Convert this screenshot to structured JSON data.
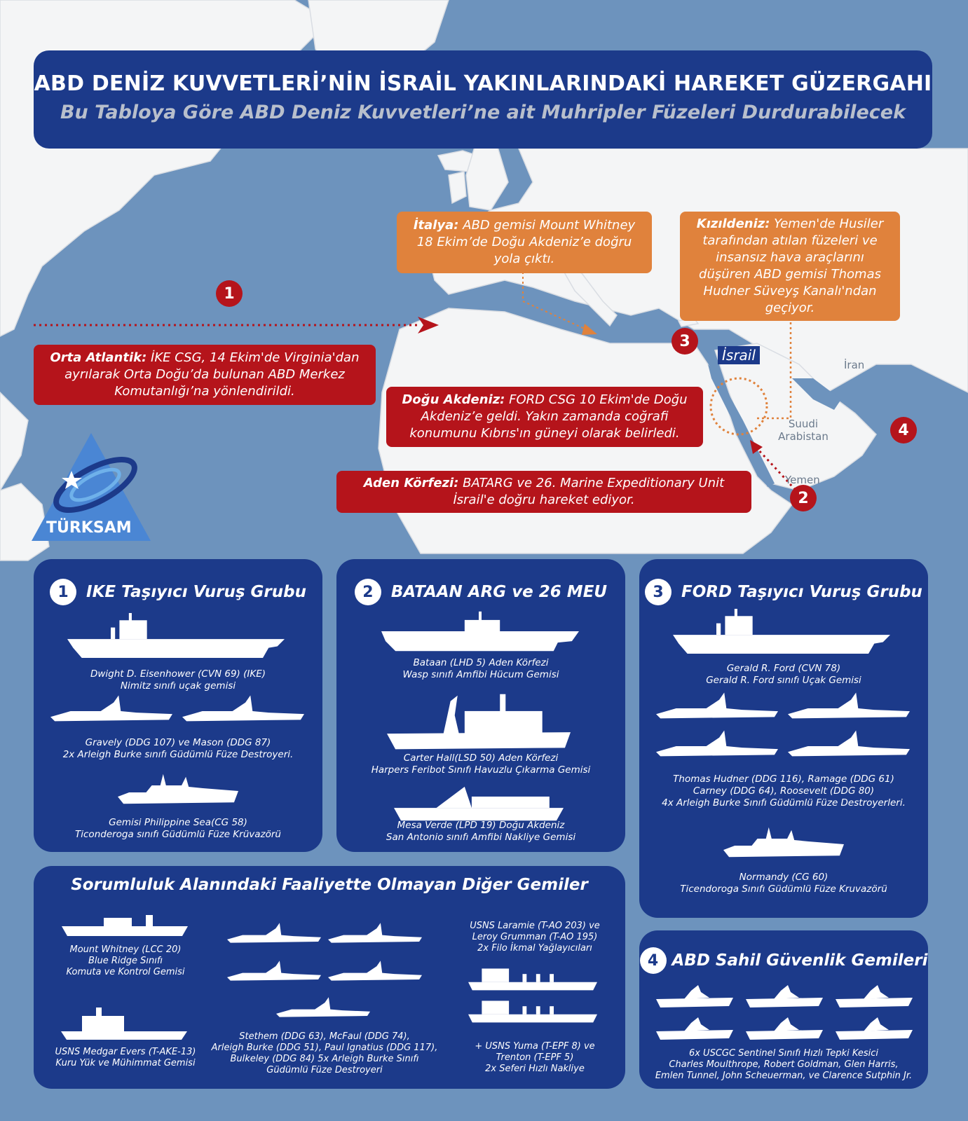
{
  "header": {
    "title": "ABD DENİZ KUVVETLERİ’NİN İSRAİL YAKINLARINDAKİ HAREKET GÜZERGAHI",
    "subtitle": "Bu Tabloya Göre ABD Deniz Kuvvetleri’ne ait Muhripler Füzeleri Durdurabilecek"
  },
  "colors": {
    "navy": "#1c3a8a",
    "red": "#b5141b",
    "orange": "#e0823c",
    "ocean": "#6d93bd",
    "land": "#f4f5f6"
  },
  "map": {
    "markers": [
      "1",
      "2",
      "3",
      "4"
    ],
    "labels": {
      "israel": "İsrail",
      "iran": "İran",
      "saudi": "Suudi Arabistan",
      "yemen": "Yemen"
    },
    "callouts": {
      "italy_head": "İtalya:",
      "italy_body": "ABD gemisi Mount Whitney 18 Ekim’de Doğu Akdeniz’e doğru yola çıktı.",
      "redsea_head": "Kızıldeniz:",
      "redsea_body": "Yemen'de Husiler tarafından atılan füzeleri ve insansız hava araçlarını düşüren ABD gemisi Thomas Hudner Süveyş Kanalı'ndan geçiyor.",
      "atlantic_head": "Orta Atlantik:",
      "atlantic_body": "İKE CSG, 14 Ekim'de Virginia'dan ayrılarak Orta Doğu’da bulunan ABD Merkez Komutanlığı’na yönlendirildi.",
      "eastmed_head": "Doğu Akdeniz:",
      "eastmed_body": "FORD CSG 10 Ekim'de Doğu Akdeniz’e geldi. Yakın zamanda coğrafi konumunu Kıbrıs'ın güneyi olarak belirledi.",
      "aden_head": "Aden Körfezi:",
      "aden_body": "BATARG ve 26. Marine Expeditionary Unit İsrail'e doğru hareket ediyor."
    }
  },
  "logo": {
    "text": "TÜRKSAM"
  },
  "panels": {
    "ike": {
      "num": "1",
      "title": "IKE Taşıyıcı Vuruş Grubu",
      "cap1": [
        "Dwight D. Eisenhower (CVN 69) (IKE)",
        "Nimitz sınıfı uçak gemisi"
      ],
      "cap2": [
        "Gravely (DDG 107) ve Mason (DDG 87)",
        "2x Arleigh Burke sınıfı Güdümlü Füze Destroyeri."
      ],
      "cap3": [
        "Gemisi Philippine Sea(CG 58)",
        "Ticonderoga sınıfı Güdümlü Füze Krüvazörü"
      ]
    },
    "bataan": {
      "num": "2",
      "title": "BATAAN ARG ve 26 MEU",
      "cap1": [
        "Bataan (LHD 5) Aden Körfezi",
        "Wasp sınıfı Amfibi Hücum Gemisi"
      ],
      "cap2": [
        "Carter Hall(LSD 50) Aden Körfezi",
        "Harpers Feribot Sınıfı Havuzlu Çıkarma Gemisi"
      ],
      "cap3": [
        "Mesa Verde (LPD 19) Doğu Akdeniz",
        "San Antonio sınıfı Amfibi Nakliye Gemisi"
      ]
    },
    "ford": {
      "num": "3",
      "title": "FORD Taşıyıcı Vuruş Grubu",
      "cap1": [
        "Gerald R. Ford (CVN 78)",
        "Gerald R. Ford sınıfı Uçak Gemisi"
      ],
      "cap2": [
        "Thomas Hudner (DDG 116), Ramage (DDG 61)",
        "Carney (DDG 64), Roosevelt (DDG 80)",
        "4x Arleigh Burke Sınıfı Güdümlü Füze Destroyerleri."
      ],
      "cap3": [
        "Normandy (CG 60)",
        "Ticendoroga Sınıfı Güdümlü Füze Kruvazörü"
      ]
    },
    "other": {
      "title": "Sorumluluk Alanındaki Faaliyette Olmayan Diğer Gemiler",
      "cap1": [
        "Mount Whitney (LCC 20)",
        "Blue Ridge Sınıfı",
        "Komuta ve  Kontrol Gemisi"
      ],
      "cap2": [
        "USNS Medgar Evers (T-AKE-13)",
        "Kuru Yük ve Mühimmat Gemisi"
      ],
      "cap3": [
        "Stethem (DDG 63), McFaul (DDG 74),",
        "Arleigh Burke (DDG 51), Paul Ignatius (DDG 117),",
        "Bulkeley (DDG 84) 5x Arleigh Burke Sınıfı",
        "Güdümlü Füze Destroyeri"
      ],
      "cap4": [
        "USNS Laramie (T-AO 203) ve",
        "Leroy Grumman (T-AO 195)",
        "2x Filo İkmal Yağlayıcıları"
      ],
      "cap5": [
        "+ USNS Yuma (T-EPF 8) ve",
        "Trenton (T-EPF 5)",
        "2x Seferi Hızlı Nakliye"
      ]
    },
    "coast": {
      "num": "4",
      "title": "ABD Sahil Güvenlik Gemileri",
      "cap1": [
        "6x USCGC Sentinel Sınıfı Hızlı Tepki Kesici",
        "Charles Moulthrope, Robert Goldman, Glen Harris,",
        "Emlen Tunnel, John Scheuerman, ve Clarence Sutphin Jr."
      ]
    }
  }
}
